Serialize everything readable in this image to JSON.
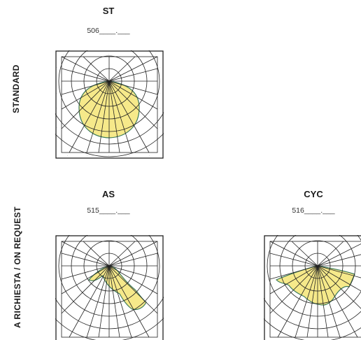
{
  "side_labels": {
    "standard": "STANDARD",
    "on_request": "A RICHIESTA / ON REQUEST"
  },
  "products": [
    {
      "title": "ST",
      "code": "506____.___"
    },
    {
      "title": "AS",
      "code": "515____.___"
    },
    {
      "title": "CYC",
      "code": "516____.___"
    }
  ],
  "colors": {
    "fill": "#f6e98a",
    "fill_stroke": "#3c7a5a",
    "grid": "#222222"
  }
}
